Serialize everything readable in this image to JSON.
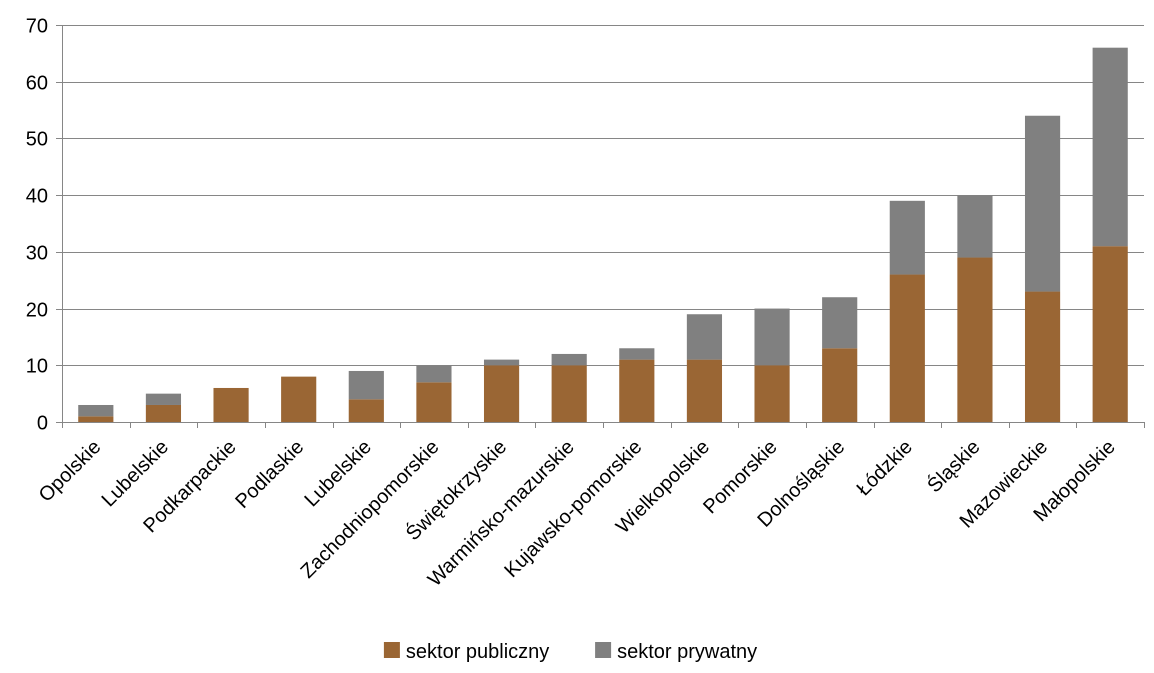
{
  "chart_data": {
    "type": "bar",
    "stacked": true,
    "categories": [
      "Opolskie",
      "Lubelskie",
      "Podkarpackie",
      "Podlaskie",
      "Lubelskie",
      "Zachodniopomorskie",
      "Świętokrzyskie",
      "Warmińsko-mazurskie",
      "Kujawsko-pomorskie",
      "Wielkopolskie",
      "Pomorskie",
      "Dolnośląskie",
      "Łódzkie",
      "Śląskie",
      "Mazowieckie",
      "Małopolskie"
    ],
    "series": [
      {
        "name": "sektor publiczny",
        "color": "#9a6634",
        "values": [
          1,
          3,
          6,
          8,
          4,
          7,
          10,
          10,
          11,
          11,
          10,
          13,
          26,
          29,
          23,
          31
        ]
      },
      {
        "name": "sektor prywatny",
        "color": "#808080",
        "values": [
          2,
          2,
          0,
          0,
          5,
          3,
          1,
          2,
          2,
          8,
          10,
          9,
          13,
          11,
          31,
          35
        ]
      }
    ],
    "ylim": [
      0,
      70
    ],
    "yticks": [
      "0",
      "10",
      "20",
      "30",
      "40",
      "50",
      "60",
      "70"
    ],
    "grid": true,
    "legend": "bottom",
    "title": "",
    "xlabel": "",
    "ylabel": ""
  }
}
